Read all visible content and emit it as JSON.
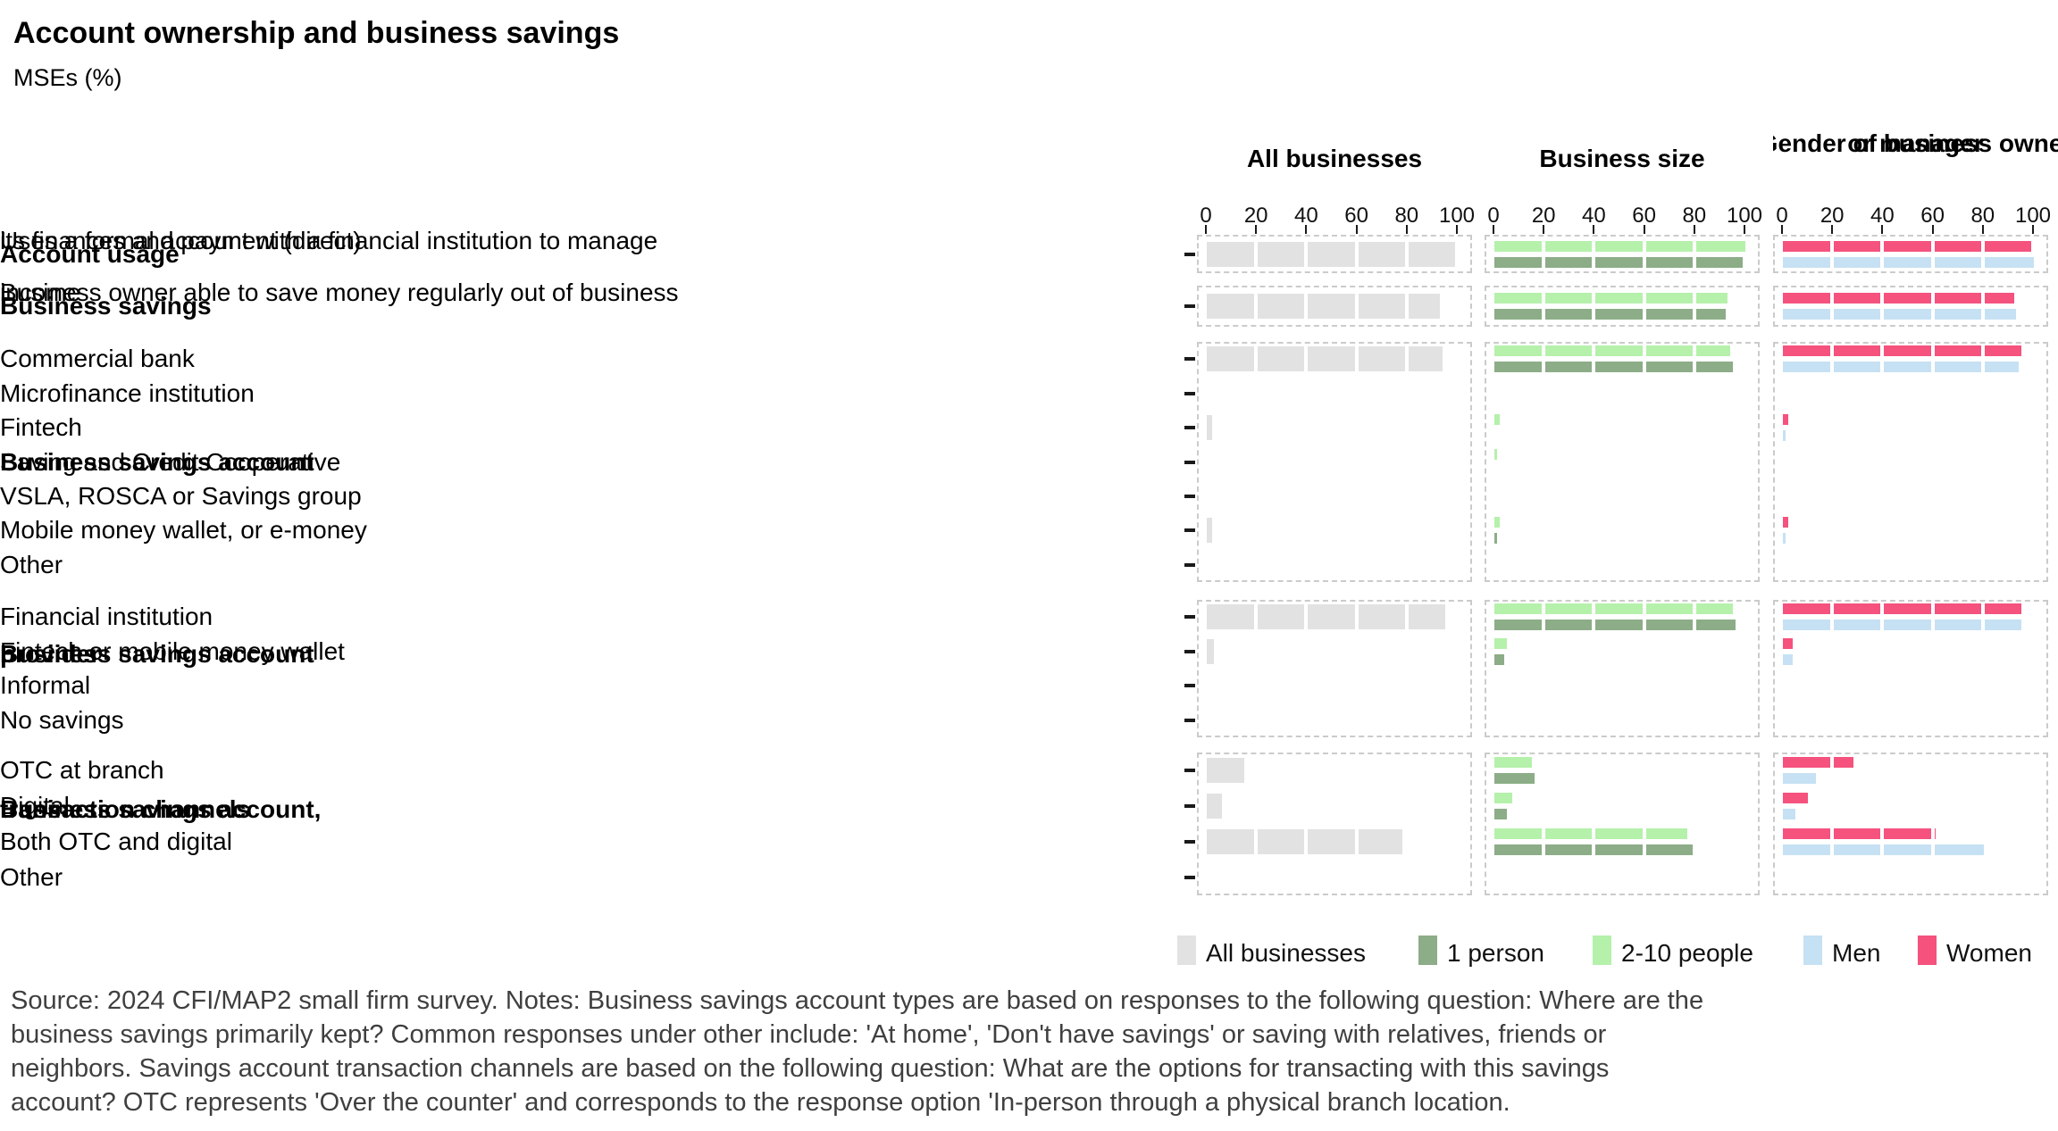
{
  "title": "Account ownership and business savings",
  "subtitle": "MSEs (%)",
  "footnote": {
    "lines": [
      "Source: 2024 CFI/MAP2 small firm survey. Notes: Business savings account types are based on responses to the following question: Where are the",
      "business savings primarily kept? Common responses under other include: 'At home', 'Don't have savings' or saving with relatives, friends or",
      "neighbors. Savings account transaction channels are based on the following question: What are the options for transacting with this savings",
      "account? OTC represents 'Over the counter' and corresponds to the response option 'In-person through a physical branch location."
    ]
  },
  "chart_data": {
    "type": "bar",
    "orientation": "horizontal",
    "x_range": [
      0,
      100
    ],
    "x_ticks": [
      0,
      20,
      40,
      60,
      80,
      100
    ],
    "grid": "off",
    "legend_position": "bottom-right",
    "panels": [
      {
        "header_lines": [
          "All businesses"
        ],
        "series": [
          {
            "name": "All businesses",
            "color": "#e2e2e2"
          }
        ]
      },
      {
        "header_lines": [
          "Business size"
        ],
        "series": [
          {
            "name": "2-10 people",
            "color": "#b5f1ab"
          },
          {
            "name": "1 person",
            "color": "#8cad87"
          }
        ]
      },
      {
        "header_lines": [
          "Gender of business owner",
          "or manager"
        ],
        "series": [
          {
            "name": "Women",
            "color": "#f5527e"
          },
          {
            "name": "Men",
            "color": "#c6e1f3"
          }
        ]
      }
    ],
    "sections": [
      {
        "label_lines": [
          "Account usage"
        ],
        "rows": [
          {
            "label_lines": [
              "Uses a formal account with a financial institution to manage",
              "its finances and payment (direct)"
            ],
            "values": [
              [
                99
              ],
              [
                100,
                99
              ],
              [
                99,
                100
              ]
            ]
          }
        ]
      },
      {
        "label_lines": [
          "Business savings"
        ],
        "rows": [
          {
            "label_lines": [
              "Business owner able to save money regularly out of business",
              "income"
            ],
            "values": [
              [
                93
              ],
              [
                93,
                92
              ],
              [
                92,
                93
              ]
            ]
          }
        ]
      },
      {
        "label_lines": [
          "Business savings account"
        ],
        "rows": [
          {
            "label_lines": [
              "Commercial bank"
            ],
            "values": [
              [
                94
              ],
              [
                94,
                95
              ],
              [
                95,
                94
              ]
            ]
          },
          {
            "label_lines": [
              "Microfinance institution"
            ],
            "values": [
              [
                0
              ],
              [
                0,
                0
              ],
              [
                0,
                0
              ]
            ]
          },
          {
            "label_lines": [
              "Fintech"
            ],
            "values": [
              [
                2
              ],
              [
                2,
                0
              ],
              [
                2,
                1
              ]
            ]
          },
          {
            "label_lines": [
              "Saving and Credit Cooperative"
            ],
            "values": [
              [
                0
              ],
              [
                1,
                0
              ],
              [
                0,
                0
              ]
            ]
          },
          {
            "label_lines": [
              "VSLA, ROSCA or Savings group"
            ],
            "values": [
              [
                0
              ],
              [
                0,
                0
              ],
              [
                0,
                0
              ]
            ]
          },
          {
            "label_lines": [
              "Mobile money wallet, or e-money"
            ],
            "values": [
              [
                2
              ],
              [
                2,
                1
              ],
              [
                2,
                1
              ]
            ]
          },
          {
            "label_lines": [
              "Other"
            ],
            "values": [
              [
                0
              ],
              [
                0,
                0
              ],
              [
                0,
                0
              ]
            ]
          }
        ]
      },
      {
        "label_lines": [
          "Business savings account",
          "provider"
        ],
        "rows": [
          {
            "label_lines": [
              "Financial institution"
            ],
            "values": [
              [
                95
              ],
              [
                95,
                96
              ],
              [
                95,
                95
              ]
            ]
          },
          {
            "label_lines": [
              "Fintech or mobile money wallet"
            ],
            "values": [
              [
                3
              ],
              [
                5,
                4
              ],
              [
                4,
                4
              ]
            ]
          },
          {
            "label_lines": [
              "Informal"
            ],
            "values": [
              [
                0
              ],
              [
                0,
                0
              ],
              [
                0,
                0
              ]
            ]
          },
          {
            "label_lines": [
              "No savings"
            ],
            "values": [
              [
                0
              ],
              [
                0,
                0
              ],
              [
                0,
                0
              ]
            ]
          }
        ]
      },
      {
        "label_lines": [
          "Business savings account,",
          "transaction channels"
        ],
        "rows": [
          {
            "label_lines": [
              "OTC at branch"
            ],
            "values": [
              [
                15
              ],
              [
                15,
                16
              ],
              [
                28,
                13
              ]
            ]
          },
          {
            "label_lines": [
              "Digital"
            ],
            "values": [
              [
                6
              ],
              [
                7,
                5
              ],
              [
                10,
                5
              ]
            ]
          },
          {
            "label_lines": [
              "Both OTC and digital"
            ],
            "values": [
              [
                78
              ],
              [
                77,
                79
              ],
              [
                61,
                80
              ]
            ]
          },
          {
            "label_lines": [
              "Other"
            ],
            "values": [
              [
                0
              ],
              [
                0,
                0
              ],
              [
                0,
                0
              ]
            ]
          }
        ]
      }
    ],
    "legend": [
      {
        "label": "All businesses",
        "color": "#e2e2e2"
      },
      {
        "label": "1 person",
        "color": "#8cad87"
      },
      {
        "label": "2-10 people",
        "color": "#b5f1ab"
      },
      {
        "label": "Men",
        "color": "#c6e1f3"
      },
      {
        "label": "Women",
        "color": "#f5527e"
      }
    ]
  }
}
